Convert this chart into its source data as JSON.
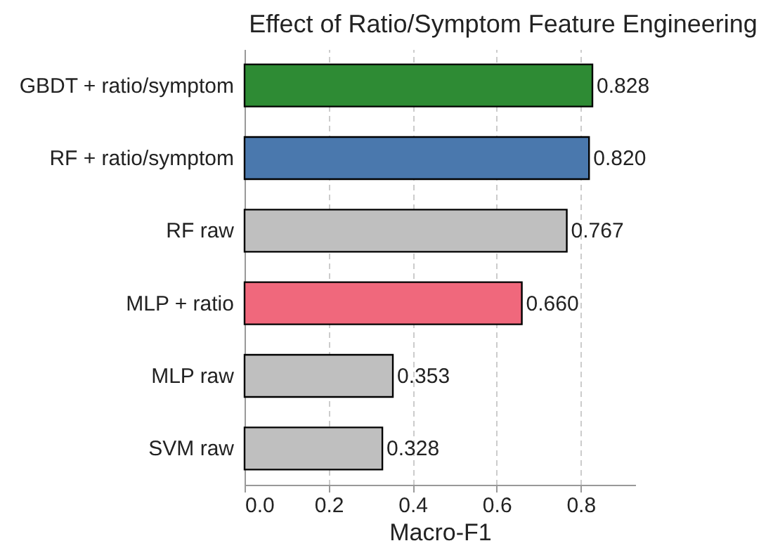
{
  "chart_data": {
    "type": "bar",
    "orientation": "horizontal",
    "title": "Effect of Ratio/Symptom Feature Engineering",
    "xlabel": "Macro-F1",
    "categories": [
      "GBDT + ratio/symptom",
      "RF + ratio/symptom",
      "RF raw",
      "MLP + ratio",
      "MLP raw",
      "SVM raw"
    ],
    "values": [
      0.828,
      0.82,
      0.767,
      0.66,
      0.353,
      0.328
    ],
    "colors": [
      "#2e8b34",
      "#4a78ad",
      "#bfbfbf",
      "#f0687c",
      "#bfbfbf",
      "#bfbfbf"
    ],
    "xlim": [
      0,
      0.93
    ],
    "xticks": [
      {
        "value": 0,
        "label": "0.0"
      },
      {
        "value": 0.2,
        "label": "0.2"
      },
      {
        "value": 0.4,
        "label": "0.4"
      },
      {
        "value": 0.6,
        "label": "0.6"
      },
      {
        "value": 0.8,
        "label": "0.8"
      }
    ],
    "value_labels": [
      "0.828",
      "0.820",
      "0.767",
      "0.660",
      "0.353",
      "0.328"
    ],
    "grid": "x"
  }
}
